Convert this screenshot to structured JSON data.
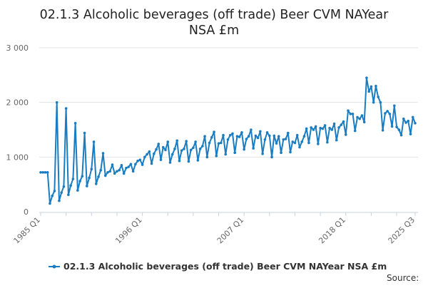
{
  "chart_data": {
    "type": "line",
    "title": "02.1.3 Alcoholic beverages (off trade) Beer CVM NAYear NSA £m",
    "title_lines": [
      "02.1.3 Alcoholic beverages (off trade) Beer CVM NAYear",
      "NSA £m"
    ],
    "xlabel": "",
    "ylabel": "",
    "x_start": "1985 Q1",
    "x_end": "2025 Q3",
    "frequency": "quarterly",
    "x_tick_labels": [
      "1985 Q1",
      "1996 Q1",
      "2007 Q1",
      "2018 Q1",
      "2025 Q3"
    ],
    "y_tick_labels": [
      "0",
      "1 000",
      "2 000",
      "3 000"
    ],
    "y_ticks": [
      0,
      1000,
      2000,
      3000
    ],
    "ylim": [
      0,
      3000
    ],
    "grid": true,
    "legend_position": "bottom",
    "color": "#1a7dc1",
    "series": [
      {
        "name": "02.1.3 Alcoholic beverages (off trade) Beer CVM NAYear NSA £m",
        "values": [
          720,
          720,
          720,
          720,
          150,
          290,
          380,
          2000,
          200,
          350,
          460,
          1890,
          310,
          480,
          600,
          1620,
          390,
          560,
          650,
          1440,
          470,
          620,
          780,
          1280,
          510,
          640,
          760,
          1070,
          660,
          720,
          740,
          860,
          700,
          740,
          760,
          850,
          700,
          800,
          820,
          870,
          740,
          870,
          930,
          950,
          860,
          1000,
          1050,
          1100,
          880,
          1060,
          1140,
          1240,
          950,
          1180,
          1130,
          1280,
          900,
          1050,
          1150,
          1300,
          930,
          1120,
          1150,
          1290,
          920,
          1130,
          1170,
          1280,
          940,
          1150,
          1200,
          1380,
          1000,
          1260,
          1360,
          1460,
          1020,
          1250,
          1260,
          1400,
          1050,
          1320,
          1400,
          1430,
          1080,
          1380,
          1370,
          1450,
          1140,
          1330,
          1380,
          1500,
          1160,
          1390,
          1350,
          1470,
          1060,
          1320,
          1450,
          1390,
          1000,
          1390,
          1250,
          1380,
          1080,
          1320,
          1330,
          1440,
          1090,
          1280,
          1260,
          1400,
          1180,
          1280,
          1380,
          1520,
          1260,
          1540,
          1500,
          1560,
          1240,
          1530,
          1520,
          1580,
          1270,
          1530,
          1500,
          1610,
          1310,
          1540,
          1590,
          1650,
          1410,
          1850,
          1790,
          1790,
          1480,
          1730,
          1700,
          1760,
          1640,
          2450,
          2200,
          2290,
          2000,
          2300,
          2100,
          2000,
          1490,
          1800,
          1840,
          1790,
          1560,
          1940,
          1550,
          1500,
          1400,
          1700,
          1630,
          1660,
          1420,
          1730,
          1620
        ]
      }
    ]
  },
  "source_label": "Source:"
}
